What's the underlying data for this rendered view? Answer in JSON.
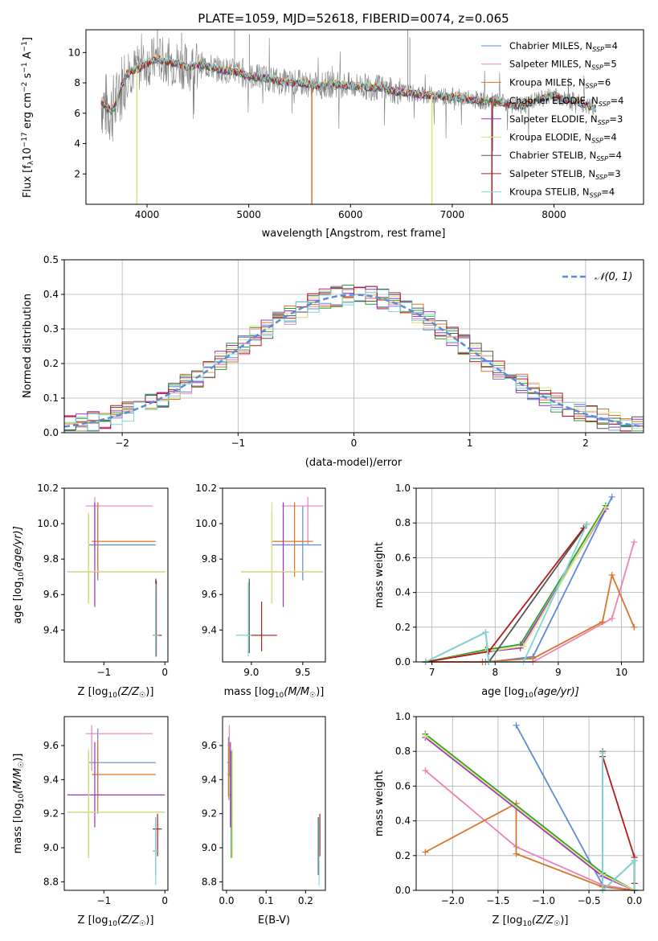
{
  "colors": {
    "chab_miles": "#5b8bd6",
    "salp_miles": "#e884b8",
    "krou_miles": "#d9742a",
    "chab_elodie": "#2ca02c",
    "salp_elodie": "#9b30c8",
    "krou_elodie": "#dfe07a",
    "chab_stelib": "#555555",
    "salp_stelib": "#b01c1c",
    "krou_stelib": "#7fd8d8",
    "data": "#808080",
    "gauss": "#5b8bd6"
  },
  "chart_data": [
    {
      "type": "line",
      "title": "PLATE=1059, MJD=52618, FIBERID=0074, z=0.065",
      "xlabel": "wavelength [Angstrom, rest frame]",
      "ylabel_parts": {
        "a": "Flux [f",
        "b": "λ",
        "c": "10",
        "d": "−17",
        "e": " erg cm",
        "f": "−2",
        "g": " s",
        "h": "−1",
        "i": " A",
        "j": "−1",
        "k": "]"
      },
      "xlim": [
        3400,
        8880
      ],
      "ylim": [
        0,
        11.5
      ],
      "xticks": [
        "4000",
        "5000",
        "6000",
        "7000",
        "8000"
      ],
      "yticks": [
        "2",
        "4",
        "6",
        "8",
        "10"
      ],
      "spectrum_x": [
        3550,
        3600,
        3650,
        3700,
        3750,
        3800,
        3850,
        3900,
        3950,
        4000,
        4100,
        4200,
        4300,
        4400,
        4500,
        4600,
        4700,
        4800,
        4900,
        5000,
        5100,
        5200,
        5300,
        5400,
        5500,
        5600,
        5700,
        5800,
        5900,
        6000,
        6100,
        6200,
        6300,
        6400,
        6500,
        6600,
        6700,
        6800,
        6900,
        7000,
        7100,
        7200,
        7300,
        7400,
        7500,
        7600,
        7700,
        7800,
        7900,
        8000,
        8100,
        8200,
        8300,
        8400
      ],
      "spectrum_y": [
        6.8,
        6.4,
        6.2,
        6.6,
        7.8,
        8.6,
        8.8,
        8.9,
        9.1,
        9.3,
        9.6,
        9.4,
        9.3,
        9.0,
        9.2,
        9.1,
        8.9,
        8.8,
        8.7,
        8.4,
        8.4,
        8.3,
        8.1,
        8.0,
        8.0,
        7.9,
        7.8,
        7.9,
        7.9,
        7.8,
        7.8,
        7.7,
        7.7,
        7.5,
        7.4,
        7.3,
        7.2,
        7.2,
        7.1,
        7.1,
        7.0,
        6.9,
        6.8,
        6.8,
        6.7,
        6.5,
        6.5,
        6.8,
        7.0,
        7.2,
        6.9,
        6.8,
        6.6,
        6.4
      ],
      "legend_labels": [
        {
          "main": "Chabrier MILES, N",
          "sub": "SSP",
          "tail": "=4"
        },
        {
          "main": "Salpeter MILES, N",
          "sub": "SSP",
          "tail": "=5"
        },
        {
          "main": "Kroupa MILES, N",
          "sub": "SSP",
          "tail": "=6"
        },
        {
          "main": "Chabrier ELODIE, N",
          "sub": "SSP",
          "tail": "=4"
        },
        {
          "main": "Salpeter ELODIE, N",
          "sub": "SSP",
          "tail": "=3"
        },
        {
          "main": "Kroupa ELODIE, N",
          "sub": "SSP",
          "tail": "=4"
        },
        {
          "main": "Chabrier STELIB, N",
          "sub": "SSP",
          "tail": "=4"
        },
        {
          "main": "Salpeter STELIB, N",
          "sub": "SSP",
          "tail": "=3"
        },
        {
          "main": "Kroupa STELIB, N",
          "sub": "SSP",
          "tail": "=4"
        }
      ]
    },
    {
      "type": "bar",
      "xlabel": "(data-model)/error",
      "ylabel": "Normed distribution",
      "xlim": [
        -2.5,
        2.5
      ],
      "ylim": [
        0,
        0.5
      ],
      "xticks": [
        "−2",
        "−1",
        "0",
        "1",
        "2"
      ],
      "yticks": [
        "0.0",
        "0.1",
        "0.2",
        "0.3",
        "0.4",
        "0.5"
      ],
      "legend": "𝒩(0, 1)",
      "grid": true
    },
    {
      "type": "scatter",
      "xlabel": "Z [log",
      "xlabel_parts": {
        "a": "Z [log",
        "b": "10",
        "c": "(Z/Z",
        "d": "☉",
        "e": ")]"
      },
      "ylabel_parts": {
        "a": "age  [log",
        "b": "10",
        "c": "(age/yr)]"
      },
      "xlim": [
        -1.65,
        0.05
      ],
      "ylim": [
        9.22,
        10.2
      ],
      "xticks": [
        "−1",
        "0"
      ],
      "yticks": [
        "9.4",
        "9.6",
        "9.8",
        "10.0",
        "10.2"
      ]
    },
    {
      "type": "scatter",
      "xlabel_parts": {
        "a": "mass [log",
        "b": "10",
        "c": "(M/M",
        "d": "☉",
        "e": ")]"
      },
      "xlim": [
        8.72,
        9.72
      ],
      "ylim": [
        9.22,
        10.2
      ],
      "xticks": [
        "9.0",
        "9.5"
      ],
      "yticks": [
        "9.4",
        "9.6",
        "9.8",
        "10.0",
        "10.2"
      ]
    },
    {
      "type": "line",
      "xlabel_parts": {
        "a": "age  [log",
        "b": "10",
        "c": "(age/yr)]"
      },
      "ylabel": "mass weight",
      "xlim": [
        6.75,
        10.35
      ],
      "ylim": [
        0,
        1.0
      ],
      "xticks": [
        "7",
        "8",
        "9",
        "10"
      ],
      "yticks": [
        "0.0",
        "0.2",
        "0.4",
        "0.6",
        "0.8",
        "1.0"
      ],
      "grid": true,
      "series": [
        {
          "key": "chab_miles",
          "x": [
            6.9,
            7.85,
            7.9,
            8.6,
            9.85
          ],
          "y": [
            0.0,
            0.0,
            0.0,
            0.03,
            0.95
          ]
        },
        {
          "key": "salp_miles",
          "x": [
            6.9,
            7.8,
            8.6,
            9.85,
            10.2
          ],
          "y": [
            0.0,
            0.0,
            0.0,
            0.25,
            0.69
          ]
        },
        {
          "key": "krou_miles",
          "x": [
            6.9,
            7.8,
            8.6,
            9.7,
            9.85,
            10.2
          ],
          "y": [
            0.0,
            0.0,
            0.02,
            0.23,
            0.5,
            0.2
          ]
        },
        {
          "key": "chab_elodie",
          "x": [
            6.9,
            7.85,
            8.4,
            9.75
          ],
          "y": [
            0.0,
            0.07,
            0.1,
            0.9
          ]
        },
        {
          "key": "salp_elodie",
          "x": [
            6.9,
            7.9,
            8.4,
            9.75
          ],
          "y": [
            0.0,
            0.06,
            0.08,
            0.88
          ]
        },
        {
          "key": "krou_elodie",
          "x": [
            6.9,
            7.85,
            8.45,
            9.75
          ],
          "y": [
            0.0,
            0.06,
            0.09,
            0.89
          ]
        },
        {
          "key": "chab_stelib",
          "x": [
            6.9,
            7.85,
            7.9,
            9.45
          ],
          "y": [
            0.0,
            0.17,
            0.0,
            0.79
          ]
        },
        {
          "key": "salp_stelib",
          "x": [
            6.9,
            7.9,
            9.4
          ],
          "y": [
            0.0,
            0.06,
            0.77
          ]
        },
        {
          "key": "krou_stelib",
          "x": [
            6.9,
            7.85,
            7.9,
            8.45,
            9.45
          ],
          "y": [
            0.0,
            0.17,
            0.0,
            0.0,
            0.79
          ]
        }
      ]
    },
    {
      "type": "scatter",
      "xlabel_parts": {
        "a": "Z [log",
        "b": "10",
        "c": "(Z/Z",
        "d": "☉",
        "e": ")]"
      },
      "ylabel_parts": {
        "a": "mass [log",
        "b": "10",
        "c": "(M/M",
        "d": "☉",
        "e": ")]"
      },
      "xlim": [
        -1.65,
        0.05
      ],
      "ylim": [
        8.75,
        9.77
      ],
      "xticks": [
        "−1",
        "0"
      ],
      "yticks": [
        "8.8",
        "9.0",
        "9.2",
        "9.4",
        "9.6"
      ]
    },
    {
      "type": "scatter",
      "xlabel": "E(B-V)",
      "xlim": [
        -0.01,
        0.25
      ],
      "ylim": [
        8.75,
        9.77
      ],
      "xticks": [
        "0.0",
        "0.1",
        "0.2"
      ],
      "yticks": [
        "8.8",
        "9.0",
        "9.2",
        "9.4",
        "9.6"
      ]
    },
    {
      "type": "line",
      "xlabel_parts": {
        "a": "Z [log",
        "b": "10",
        "c": "(Z/Z",
        "d": "☉",
        "e": ")]"
      },
      "ylabel": "mass weight",
      "xlim": [
        -2.4,
        0.1
      ],
      "ylim": [
        0,
        1.0
      ],
      "xticks": [
        "−2.0",
        "−1.5",
        "−1.0",
        "−0.5",
        "0.0"
      ],
      "yticks": [
        "0.0",
        "0.2",
        "0.4",
        "0.6",
        "0.8",
        "1.0"
      ],
      "grid": true,
      "series": [
        {
          "key": "chab_miles",
          "x": [
            -1.3,
            -0.35,
            0.0
          ],
          "y": [
            0.95,
            0.03,
            0.0
          ]
        },
        {
          "key": "salp_miles",
          "x": [
            -2.3,
            -1.3,
            -0.35,
            0.0
          ],
          "y": [
            0.69,
            0.25,
            0.03,
            0.0
          ]
        },
        {
          "key": "krou_miles",
          "x": [
            -2.3,
            -1.3,
            -1.3,
            -0.35,
            0.0
          ],
          "y": [
            0.22,
            0.5,
            0.21,
            0.02,
            0.0
          ]
        },
        {
          "key": "chab_elodie",
          "x": [
            -2.3,
            -0.35,
            0.0
          ],
          "y": [
            0.9,
            0.1,
            0.0
          ]
        },
        {
          "key": "salp_elodie",
          "x": [
            -2.3,
            -0.35,
            0.0
          ],
          "y": [
            0.88,
            0.08,
            0.0
          ]
        },
        {
          "key": "krou_elodie",
          "x": [
            -2.3,
            -0.35,
            0.0
          ],
          "y": [
            0.89,
            0.09,
            0.0
          ]
        },
        {
          "key": "chab_stelib",
          "x": [
            -0.35,
            -0.35,
            0.0,
            0.0
          ],
          "y": [
            0.8,
            0.0,
            0.17,
            0.0
          ]
        },
        {
          "key": "salp_stelib",
          "x": [
            -0.35,
            0.0,
            0.0
          ],
          "y": [
            0.77,
            0.19,
            0.04
          ]
        },
        {
          "key": "krou_stelib",
          "x": [
            -0.35,
            -0.35,
            0.0,
            0.0
          ],
          "y": [
            0.79,
            0.0,
            0.17,
            0.0
          ]
        }
      ]
    }
  ]
}
